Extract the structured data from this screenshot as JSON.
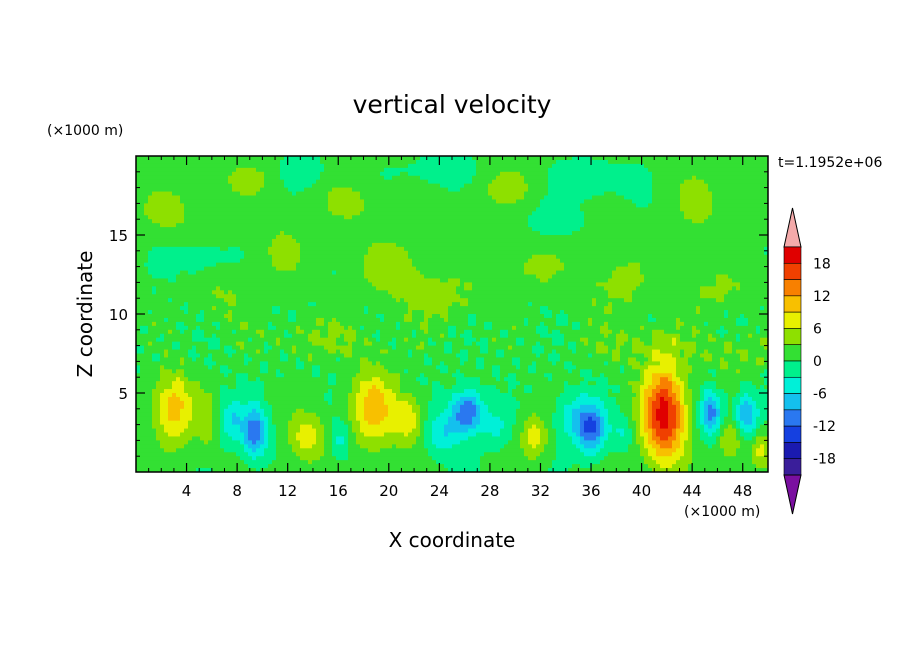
{
  "chart_data": {
    "type": "heatmap",
    "title": "vertical velocity",
    "xlabel": "X coordinate",
    "ylabel": "Z coordinate",
    "x_unit": "(×1000 m)",
    "y_unit": "(×1000 m)",
    "time_label": "t=1.1952e+06",
    "xlim": [
      0,
      50
    ],
    "ylim": [
      0,
      20
    ],
    "x_ticks": [
      4,
      8,
      12,
      16,
      20,
      24,
      28,
      32,
      36,
      40,
      44,
      48
    ],
    "y_ticks": [
      5,
      10,
      15
    ],
    "colorbar": {
      "levels": [
        -21,
        -18,
        -15,
        -12,
        -9,
        -6,
        -3,
        0,
        3,
        6,
        9,
        12,
        15,
        18,
        21
      ],
      "tick_labels": [
        "18",
        "12",
        "6",
        "0",
        "-6",
        "-12",
        "-18"
      ],
      "tick_values": [
        18,
        12,
        6,
        0,
        -6,
        -12,
        -18
      ],
      "colors": [
        "#7a0fa0",
        "#3a1e9a",
        "#1a1ab0",
        "#1540e0",
        "#2a78f0",
        "#14c0ee",
        "#00f0d8",
        "#00f08c",
        "#33e033",
        "#8ee000",
        "#e8f000",
        "#f8c000",
        "#f88000",
        "#f04000",
        "#e00000",
        "#f4aaaa"
      ],
      "extend": "both"
    },
    "features": [
      {
        "x": 3.0,
        "z": 4.0,
        "w": 10,
        "sx": 1.6,
        "sz": 2.2
      },
      {
        "x": 9.4,
        "z": 2.5,
        "w": -12,
        "sx": 1.0,
        "sz": 1.6
      },
      {
        "x": 7.6,
        "z": 3.3,
        "w": -6,
        "sx": 0.9,
        "sz": 1.4
      },
      {
        "x": 13.5,
        "z": 2.2,
        "w": 7,
        "sx": 1.4,
        "sz": 1.6
      },
      {
        "x": 18.8,
        "z": 4.0,
        "w": 10,
        "sx": 1.8,
        "sz": 2.4
      },
      {
        "x": 21.6,
        "z": 3.3,
        "w": 7,
        "sx": 1.2,
        "sz": 1.6
      },
      {
        "x": 16.2,
        "z": 2.0,
        "w": -5,
        "sx": 0.8,
        "sz": 1.2
      },
      {
        "x": 26.2,
        "z": 3.8,
        "w": -13,
        "sx": 1.3,
        "sz": 1.4
      },
      {
        "x": 24.2,
        "z": 2.4,
        "w": -6,
        "sx": 1.4,
        "sz": 1.4
      },
      {
        "x": 28.5,
        "z": 2.8,
        "w": -4,
        "sx": 1.0,
        "sz": 1.2
      },
      {
        "x": 31.5,
        "z": 2.2,
        "w": 7,
        "sx": 1.0,
        "sz": 1.4
      },
      {
        "x": 36.0,
        "z": 2.8,
        "w": -13,
        "sx": 1.2,
        "sz": 1.6
      },
      {
        "x": 34.3,
        "z": 3.5,
        "w": -5,
        "sx": 1.2,
        "sz": 1.4
      },
      {
        "x": 41.8,
        "z": 3.6,
        "w": 19,
        "sx": 1.7,
        "sz": 3.0
      },
      {
        "x": 45.5,
        "z": 3.7,
        "w": -11,
        "sx": 0.9,
        "sz": 1.4
      },
      {
        "x": 48.3,
        "z": 3.6,
        "w": -10,
        "sx": 0.9,
        "sz": 1.4
      },
      {
        "x": 47.0,
        "z": 2.0,
        "w": 6,
        "sx": 1.0,
        "sz": 1.2
      },
      {
        "x": 49.4,
        "z": 1.4,
        "w": 6,
        "sx": 0.8,
        "sz": 1.2
      },
      {
        "x": 38.5,
        "z": 2.5,
        "w": -4,
        "sx": 0.8,
        "sz": 1.0
      },
      {
        "x": 5.6,
        "z": 3.0,
        "w": 4,
        "sx": 0.7,
        "sz": 1.6
      }
    ],
    "upper_patches": [
      {
        "x": 2.5,
        "z": 16.5,
        "w": 1.5,
        "sx": 2.5,
        "sz": 1.5
      },
      {
        "x": 9.0,
        "z": 18.5,
        "w": 1.2,
        "sx": 3.0,
        "sz": 1.2
      },
      {
        "x": 11.5,
        "z": 14.0,
        "w": 1.2,
        "sx": 2.0,
        "sz": 2.0
      },
      {
        "x": 17.0,
        "z": 17.0,
        "w": 1.3,
        "sx": 2.5,
        "sz": 1.5
      },
      {
        "x": 20.5,
        "z": 13.0,
        "w": 1.5,
        "sx": 3.0,
        "sz": 2.0
      },
      {
        "x": 24.0,
        "z": 11.0,
        "w": 1.4,
        "sx": 3.5,
        "sz": 1.5
      },
      {
        "x": 29.0,
        "z": 18.0,
        "w": 1.3,
        "sx": 3.0,
        "sz": 1.5
      },
      {
        "x": 31.0,
        "z": 13.0,
        "w": 1.2,
        "sx": 3.0,
        "sz": 1.5
      },
      {
        "x": 36.0,
        "z": 18.5,
        "w": -1.2,
        "sx": 2.5,
        "sz": 1.2
      },
      {
        "x": 38.0,
        "z": 12.0,
        "w": 1.3,
        "sx": 3.0,
        "sz": 2.0
      },
      {
        "x": 44.5,
        "z": 17.0,
        "w": 1.4,
        "sx": 2.0,
        "sz": 2.0
      },
      {
        "x": 46.0,
        "z": 11.5,
        "w": 1.2,
        "sx": 2.5,
        "sz": 1.5
      },
      {
        "x": 7.0,
        "z": 11.0,
        "w": 1.1,
        "sx": 2.0,
        "sz": 1.5
      },
      {
        "x": 15.0,
        "z": 8.5,
        "w": 1.2,
        "sx": 4.0,
        "sz": 1.2
      },
      {
        "x": 40.0,
        "z": 8.0,
        "w": 1.2,
        "sx": 4.0,
        "sz": 1.2
      },
      {
        "x": 47.5,
        "z": 7.5,
        "w": 1.1,
        "sx": 2.5,
        "sz": 1.2
      },
      {
        "x": 13.0,
        "z": 19.0,
        "w": -1.1,
        "sx": 2.0,
        "sz": 1.0
      },
      {
        "x": 24.5,
        "z": 19.0,
        "w": -1.1,
        "sx": 3.0,
        "sz": 1.0
      },
      {
        "x": 33.0,
        "z": 16.0,
        "w": -1.1,
        "sx": 2.0,
        "sz": 1.2
      },
      {
        "x": 5.0,
        "z": 13.5,
        "w": -1.0,
        "sx": 2.0,
        "sz": 1.2
      }
    ]
  }
}
